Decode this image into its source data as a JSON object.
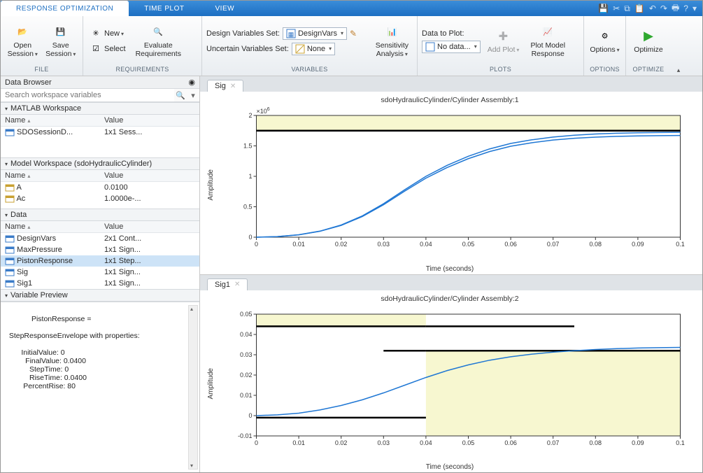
{
  "tabs": {
    "t0": "RESPONSE OPTIMIZATION",
    "t1": "TIME PLOT",
    "t2": "VIEW"
  },
  "ribbon": {
    "file": {
      "label": "FILE",
      "open": "Open\nSession",
      "save": "Save\nSession"
    },
    "req": {
      "label": "REQUIREMENTS",
      "new": "New",
      "select": "Select",
      "eval": "Evaluate\nRequirements"
    },
    "vars": {
      "label": "VARIABLES",
      "design_lbl": "Design Variables Set:",
      "design_val": "DesignVars",
      "uncert_lbl": "Uncertain Variables Set:",
      "uncert_val": "None",
      "sens": "Sensitivity\nAnalysis"
    },
    "plots": {
      "label": "PLOTS",
      "data_lbl": "Data to Plot:",
      "data_val": "No data...",
      "add": "Add Plot",
      "model": "Plot Model\nResponse"
    },
    "opts": {
      "label": "OPTIONS",
      "btn": "Options"
    },
    "opt": {
      "label": "OPTIMIZE",
      "btn": "Optimize"
    }
  },
  "browser": {
    "title": "Data Browser",
    "search_ph": "Search workspace variables",
    "ws_hdr": "MATLAB Workspace",
    "mws_hdr": "Model Workspace (sdoHydraulicCylinder)",
    "data_hdr": "Data",
    "prev_hdr": "Variable Preview",
    "col_name": "Name",
    "col_val": "Value",
    "ws_rows": [
      {
        "n": "SDOSessionD...",
        "v": "1x1 Sess..."
      }
    ],
    "mws_rows": [
      {
        "n": "A",
        "v": "0.0100"
      },
      {
        "n": "Ac",
        "v": "1.0000e-..."
      }
    ],
    "data_rows": [
      {
        "n": "DesignVars",
        "v": "2x1 Cont..."
      },
      {
        "n": "MaxPressure",
        "v": "1x1 Sign..."
      },
      {
        "n": "PistonResponse",
        "v": "1x1 Step..."
      },
      {
        "n": "Sig",
        "v": "1x1 Sign..."
      },
      {
        "n": "Sig1",
        "v": "1x1 Sign..."
      }
    ],
    "preview": "PistonResponse = \n\n  StepResponseEnvelope with properties:\n\n        InitialValue: 0\n          FinalValue: 0.0400\n            StepTime: 0\n            RiseTime: 0.0400\n         PercentRise: 80"
  },
  "plot1": {
    "tab": "Sig",
    "title": "sdoHydraulicCylinder/Cylinder Assembly:1",
    "ylabel": "Amplitude",
    "xlabel": "Time (seconds)",
    "exp": "×10",
    "exp_sup": "6",
    "xlim": [
      0,
      0.1
    ],
    "xticks": [
      0,
      0.01,
      0.02,
      0.03,
      0.04,
      0.05,
      0.06,
      0.07,
      0.08,
      0.09,
      0.1
    ],
    "ylim": [
      0,
      2
    ],
    "yticks": [
      0,
      0.5,
      1,
      1.5,
      2
    ],
    "shade_y": [
      1.75,
      2
    ],
    "bound_y": 1.75,
    "curve_color": "#1f77d4",
    "series_x": [
      0,
      0.005,
      0.01,
      0.015,
      0.02,
      0.025,
      0.03,
      0.035,
      0.04,
      0.045,
      0.05,
      0.055,
      0.06,
      0.065,
      0.07,
      0.075,
      0.08,
      0.085,
      0.09,
      0.095,
      0.1
    ],
    "series_y": [
      0,
      0.01,
      0.04,
      0.1,
      0.2,
      0.35,
      0.55,
      0.78,
      1.0,
      1.18,
      1.33,
      1.45,
      1.54,
      1.6,
      1.645,
      1.675,
      1.695,
      1.708,
      1.715,
      1.72,
      1.722
    ]
  },
  "plot2": {
    "tab": "Sig1",
    "title": "sdoHydraulicCylinder/Cylinder Assembly:2",
    "ylabel": "Amplitude",
    "xlabel": "Time (seconds)",
    "xlim": [
      0,
      0.1
    ],
    "xticks": [
      0,
      0.01,
      0.02,
      0.03,
      0.04,
      0.05,
      0.06,
      0.07,
      0.08,
      0.09,
      0.1
    ],
    "ylim": [
      -0.01,
      0.05
    ],
    "yticks": [
      -0.01,
      0,
      0.01,
      0.02,
      0.03,
      0.04,
      0.05
    ],
    "curve_color": "#1f77d4",
    "shade_upper": {
      "x": [
        0,
        0.04
      ],
      "y": [
        0.044,
        0.05
      ]
    },
    "shade_lower": {
      "x": [
        0.04,
        0.1
      ],
      "y": [
        -0.01,
        0.032
      ]
    },
    "bounds": [
      {
        "x": [
          0,
          0.04
        ],
        "y": 0.044
      },
      {
        "x": [
          0.03,
          0.04
        ],
        "y": 0.032
      },
      {
        "x": [
          0.04,
          0.075
        ],
        "y": 0.044
      },
      {
        "x": [
          0,
          0.04
        ],
        "y": -0.001
      },
      {
        "x": [
          0.04,
          0.1
        ],
        "y": 0.032
      }
    ],
    "series_x": [
      0,
      0.005,
      0.01,
      0.015,
      0.02,
      0.025,
      0.03,
      0.035,
      0.04,
      0.045,
      0.05,
      0.055,
      0.06,
      0.065,
      0.07,
      0.075,
      0.08,
      0.085,
      0.09,
      0.095,
      0.1
    ],
    "series_y": [
      0,
      0.0004,
      0.0012,
      0.0028,
      0.005,
      0.0078,
      0.0112,
      0.015,
      0.0188,
      0.0222,
      0.025,
      0.0273,
      0.029,
      0.0303,
      0.0313,
      0.032,
      0.0326,
      0.033,
      0.0333,
      0.0335,
      0.0336
    ]
  }
}
